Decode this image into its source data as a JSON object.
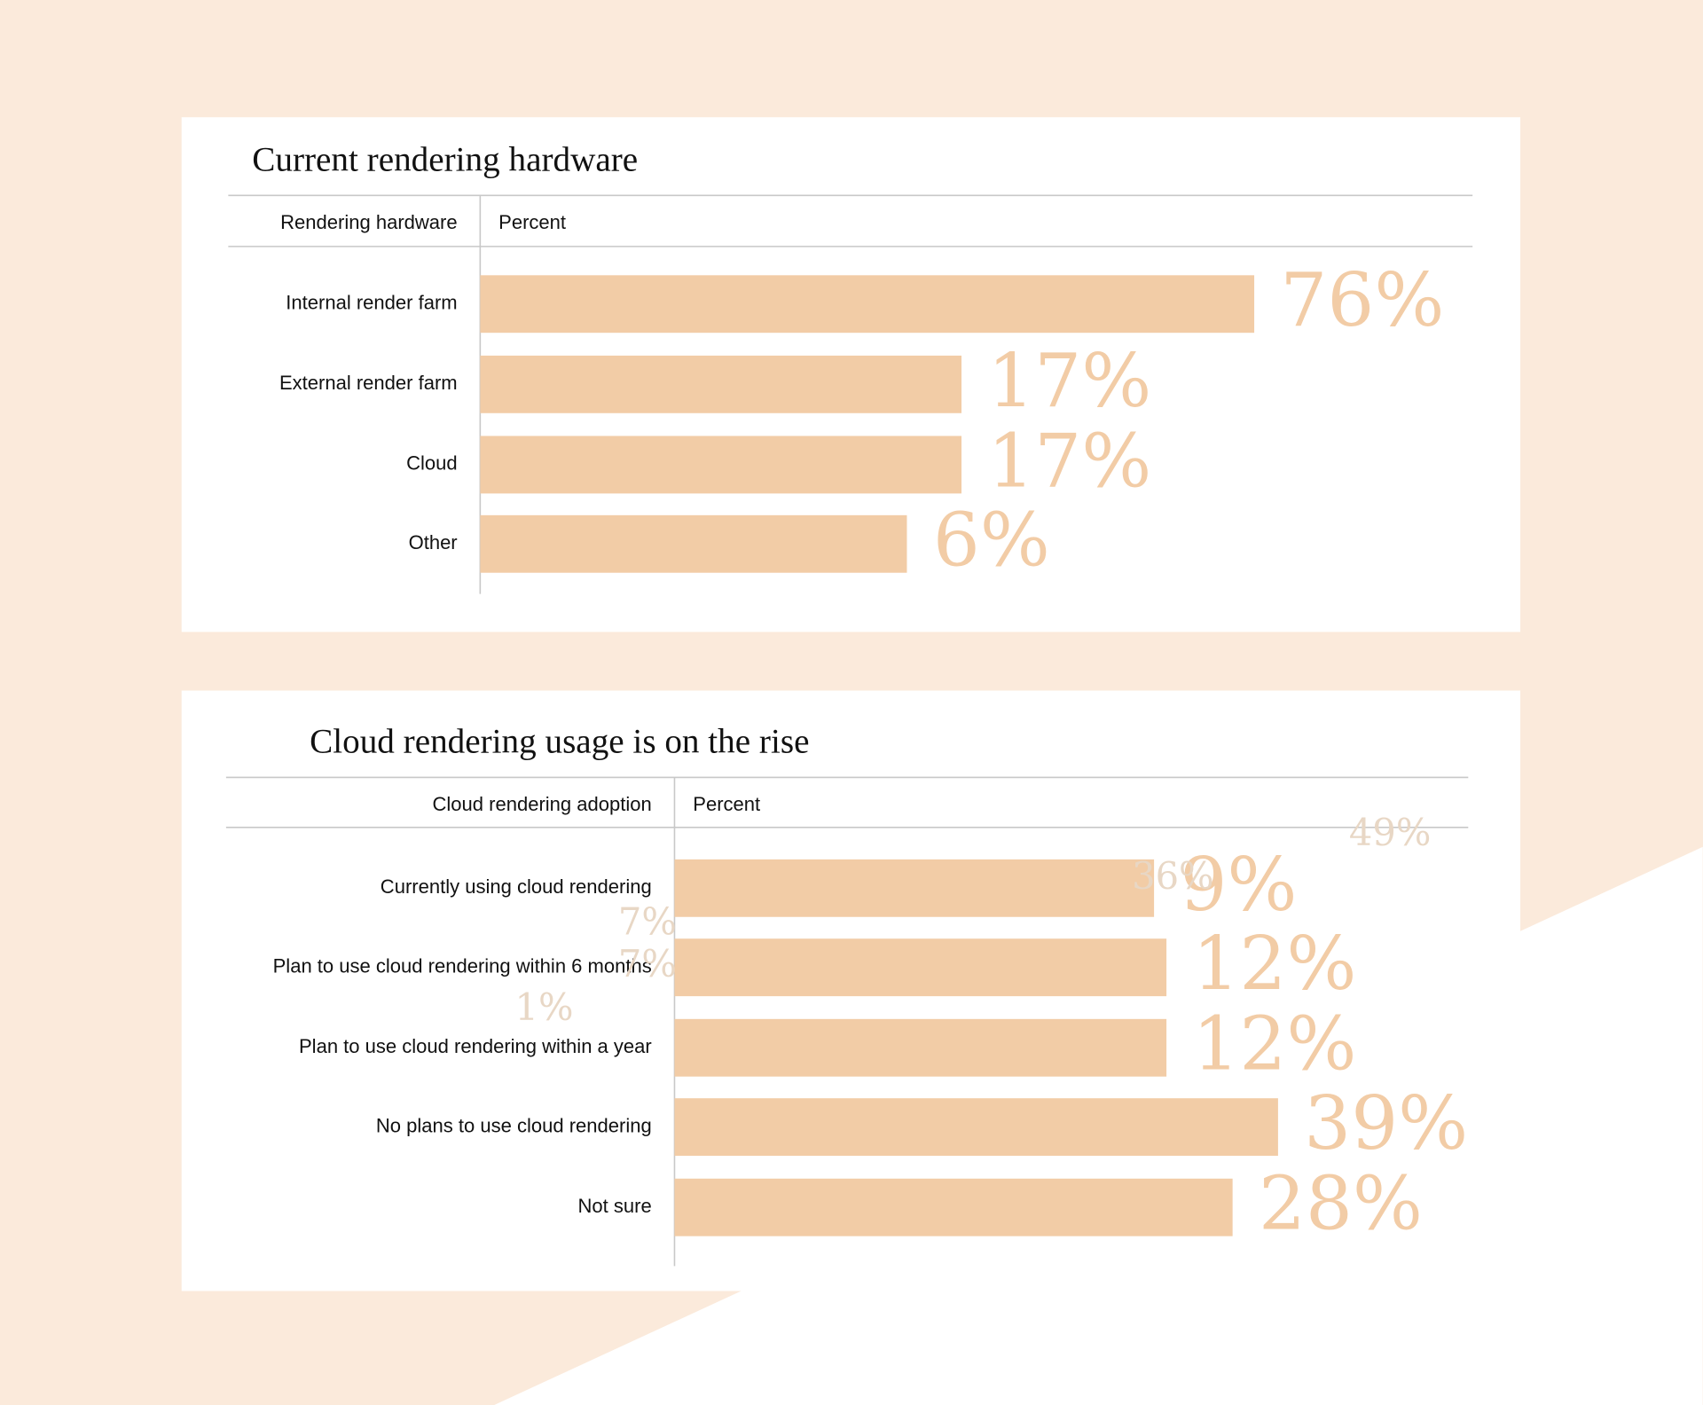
{
  "chart_data": [
    {
      "type": "bar",
      "title": "Current rendering hardware",
      "category_header": "Rendering hardware",
      "value_header": "Percent",
      "categories": [
        "Internal render farm",
        "External render farm",
        "Cloud",
        "Other"
      ],
      "values": [
        76,
        17,
        17,
        6
      ],
      "value_labels": [
        "76%",
        "17%",
        "17%",
        "6%"
      ],
      "color": "#f2cca6",
      "xlim": [
        -80,
        120
      ]
    },
    {
      "type": "bar",
      "title": "Cloud rendering usage is on the rise",
      "category_header": "Cloud rendering adoption",
      "value_header": "Percent",
      "categories": [
        "Currently using cloud rendering",
        "Plan to use cloud rendering within 6 months",
        "Plan to use cloud rendering within a year",
        "No plans to use cloud rendering",
        "Not sure"
      ],
      "values": [
        9,
        12,
        12,
        39,
        28
      ],
      "value_labels": [
        "9%",
        "12%",
        "12%",
        "39%",
        "28%"
      ],
      "color": "#f2cca6",
      "xlim": [
        -107,
        85
      ]
    }
  ],
  "ghost_labels": [
    "49%",
    "36%",
    "7%",
    "7%",
    "1%"
  ]
}
